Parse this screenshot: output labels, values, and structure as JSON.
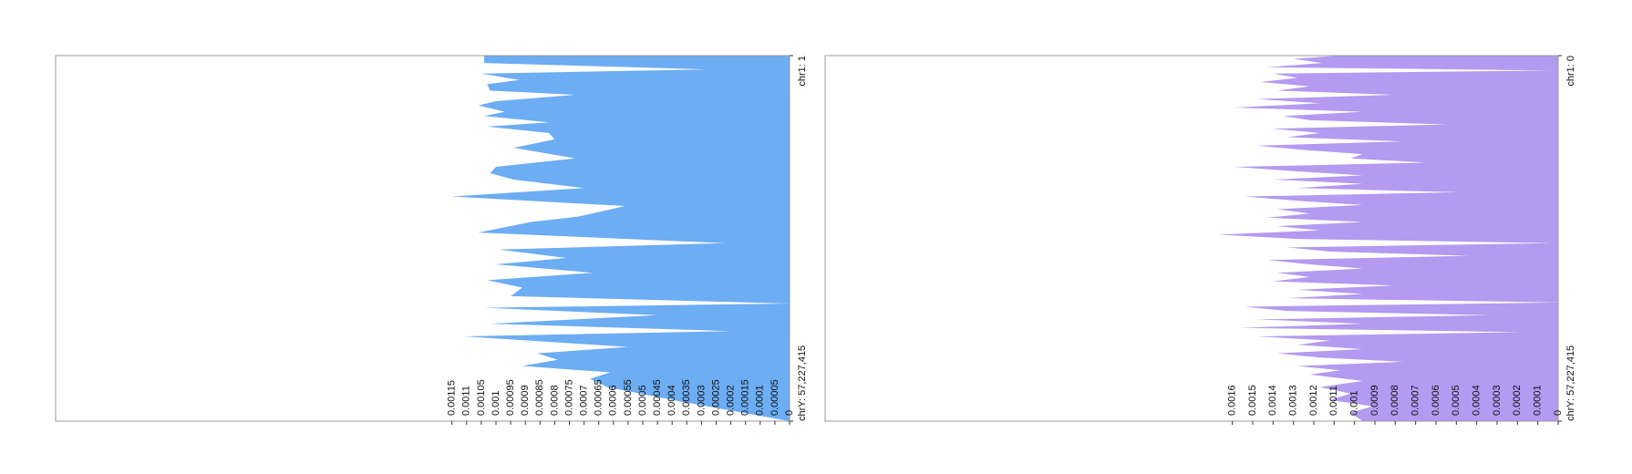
{
  "chart_data": [
    {
      "type": "area",
      "color": "#6cadf3",
      "xlim": [
        0,
        3095677412
      ],
      "xticks": [
        {
          "value": 1,
          "label": "chr1: 1"
        },
        {
          "value": 3095677412,
          "label": "chrY: 57,227,415"
        }
      ],
      "ylim": [
        0,
        0.0025
      ],
      "yticks": [
        0,
        5e-05,
        0.0001,
        0.00015,
        0.0002,
        0.00025,
        0.0003,
        0.00035,
        0.0004,
        0.00045,
        0.0005,
        0.00055,
        0.0006,
        0.00065,
        0.0007,
        0.00075,
        0.0008,
        0.00085,
        0.0009,
        0.00095,
        0.001,
        0.00105,
        0.0011,
        0.00115
      ],
      "x": [
        0,
        62800000,
        116600000,
        152500000,
        206400000,
        242300000,
        296100000,
        332000000,
        385800000,
        421700000,
        475600000,
        511500000,
        565300000,
        601200000,
        655000000,
        708900000,
        780700000,
        870400000,
        942200000,
        996000000,
        1049800000,
        1121600000,
        1193400000,
        1274200000,
        1363900000,
        1408800000,
        1498500000,
        1588200000,
        1642100000,
        1713800000,
        1767700000,
        1839500000,
        1902300000,
        1965100000,
        2036900000,
        2099700000,
        2135600000,
        2198400000,
        2270200000,
        2333000000,
        2377800000,
        2467600000,
        2521400000,
        2575300000,
        2629100000,
        2682900000,
        2736800000,
        2808500000,
        2934200000,
        3095677412
      ],
      "values": [
        0.00104,
        0.00104,
        0.00028,
        0.00105,
        0.00092,
        0.00103,
        0.00102,
        0.00073,
        0.001,
        0.00106,
        0.00097,
        0.00104,
        0.00082,
        0.00103,
        0.00082,
        0.0008,
        0.00094,
        0.00073,
        0.001,
        0.00102,
        0.00094,
        0.0007,
        0.00115,
        0.00056,
        0.00072,
        0.00088,
        0.00106,
        0.00022,
        0.00099,
        0.00076,
        0.001,
        0.00067,
        0.00103,
        0.00091,
        0.00095,
        0,
        0.00104,
        0.00045,
        0.00102,
        0.0002,
        0.00111,
        0.00055,
        0.00086,
        0.00079,
        0.00091,
        0.00061,
        0.00068,
        0.00062,
        0.00036,
        0
      ]
    },
    {
      "type": "area",
      "color": "#b49af0",
      "xlim": [
        0,
        3095677412
      ],
      "xticks": [
        {
          "value": 0,
          "label": "chr1: 0"
        },
        {
          "value": 3095677412,
          "label": "chrY: 57,227,415"
        }
      ],
      "ylim": [
        0,
        0.0036
      ],
      "yticks": [
        0,
        0.0001,
        0.0002,
        0.0003,
        0.0004,
        0.0005,
        0.0006,
        0.0007,
        0.0008,
        0.0009,
        0.001,
        0.0011,
        0.0012,
        0.0013,
        0.0014,
        0.0015,
        0.0016
      ],
      "x": [
        0,
        26900000,
        62800000,
        98700000,
        125600000,
        152500000,
        188400000,
        224300000,
        260200000,
        296100000,
        332000000,
        367900000,
        403800000,
        439700000,
        475600000,
        511500000,
        547400000,
        583200000,
        619100000,
        655000000,
        690900000,
        726800000,
        762700000,
        798600000,
        834500000,
        870400000,
        906300000,
        942200000,
        978100000,
        1014000000,
        1049800000,
        1085700000,
        1121600000,
        1157500000,
        1193400000,
        1229300000,
        1265200000,
        1301100000,
        1337000000,
        1372900000,
        1408800000,
        1444700000,
        1480500000,
        1516400000,
        1552300000,
        1588200000,
        1624100000,
        1660000000,
        1695900000,
        1731800000,
        1767700000,
        1803600000,
        1839500000,
        1875400000,
        1911200000,
        1947100000,
        1983000000,
        2018900000,
        2054800000,
        2090700000,
        2126600000,
        2162500000,
        2198400000,
        2234300000,
        2270200000,
        2306100000,
        2341900000,
        2377800000,
        2413700000,
        2449600000,
        2485500000,
        2521400000,
        2557300000,
        2593200000,
        2629100000,
        2665000000,
        2700900000,
        2754700000,
        2808500000,
        2862400000,
        2916200000,
        2970100000,
        3023900000,
        3095677412
      ],
      "values": [
        0.00107,
        0.0013,
        0.00116,
        0.00143,
        3e-05,
        0.0014,
        0.00128,
        0.00146,
        0.00122,
        0.00138,
        0.00081,
        0.00148,
        0.00117,
        0.00159,
        0.00096,
        0.00135,
        0.00122,
        0.00055,
        0.0014,
        0.00117,
        0.00133,
        0.00076,
        0.00148,
        0.00125,
        0.00096,
        0.00102,
        0.00065,
        0.00159,
        0.0013,
        0.00096,
        0.0014,
        0.00096,
        0.00128,
        0.00049,
        0.00154,
        0.00128,
        0.00096,
        0.00138,
        0.00122,
        0.00143,
        0.00096,
        0.00138,
        0.00117,
        0.00167,
        0.00128,
        3e-05,
        0.00133,
        0.00112,
        0.00044,
        0.00143,
        0.00122,
        0.00096,
        0.00138,
        0.00122,
        0.0014,
        0.00081,
        0.00128,
        0.00096,
        0.00133,
        0,
        0.00154,
        0.00133,
        0.00034,
        0.00148,
        0.00096,
        0.00156,
        0.00018,
        0.00148,
        0.00112,
        0.00128,
        0.00096,
        0.00138,
        0.00117,
        0.00076,
        0.00128,
        0.00107,
        0.00122,
        0.00096,
        0.00117,
        0.00102,
        0.00112,
        0.00091,
        0.00102,
        0.00096
      ]
    }
  ]
}
